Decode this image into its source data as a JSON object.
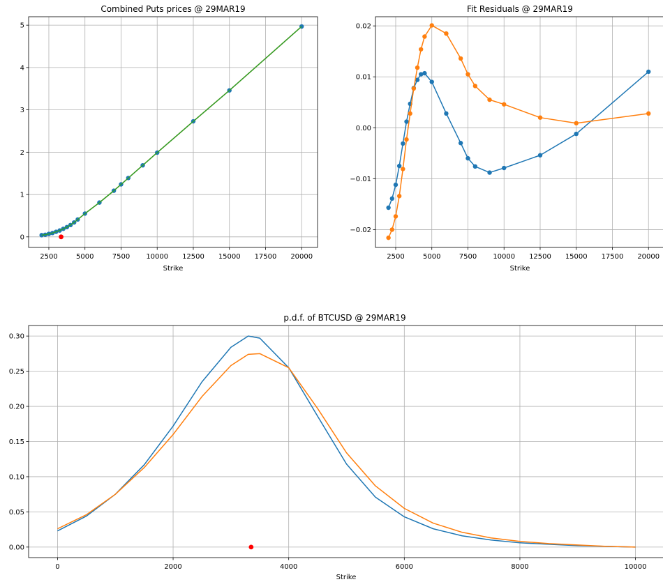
{
  "colors": {
    "blue": "#1f77b4",
    "orange": "#ff7f0e",
    "green": "#2ca02c",
    "red": "#ff0000"
  },
  "chart_data": [
    {
      "id": "puts",
      "type": "line",
      "title": "Combined Puts prices @ 29MAR19",
      "xlabel": "Strike",
      "ylabel": "",
      "xlim": [
        1100,
        21100
      ],
      "ylim": [
        -0.25,
        5.2
      ],
      "xticks": [
        2500,
        5000,
        7500,
        10000,
        12500,
        15000,
        17500,
        20000
      ],
      "yticks": [
        0,
        1,
        2,
        3,
        4,
        5
      ],
      "grid": true,
      "x": [
        2000,
        2250,
        2500,
        2750,
        3000,
        3250,
        3500,
        3750,
        4000,
        4250,
        4500,
        5000,
        6000,
        7000,
        7500,
        8000,
        9000,
        10000,
        12500,
        15000,
        20000
      ],
      "series": [
        {
          "color": "orange",
          "style": "line",
          "values": [
            0.04,
            0.05,
            0.07,
            0.09,
            0.12,
            0.15,
            0.19,
            0.23,
            0.28,
            0.34,
            0.41,
            0.55,
            0.81,
            1.09,
            1.24,
            1.39,
            1.69,
            1.99,
            2.73,
            3.46,
            4.97
          ]
        },
        {
          "color": "blue",
          "style": "markers",
          "values": [
            0.04,
            0.05,
            0.07,
            0.09,
            0.12,
            0.15,
            0.19,
            0.23,
            0.28,
            0.34,
            0.41,
            0.55,
            0.81,
            1.09,
            1.24,
            1.39,
            1.69,
            1.99,
            2.73,
            3.46,
            4.97
          ]
        },
        {
          "color": "green",
          "style": "line",
          "values": [
            0.04,
            0.05,
            0.07,
            0.09,
            0.12,
            0.15,
            0.19,
            0.23,
            0.28,
            0.34,
            0.41,
            0.55,
            0.81,
            1.09,
            1.24,
            1.39,
            1.69,
            1.99,
            2.73,
            3.46,
            4.97
          ]
        }
      ],
      "marker": {
        "x": 3350,
        "y": 0.0,
        "color": "red"
      }
    },
    {
      "id": "residuals",
      "type": "line",
      "title": "Fit Residuals @ 29MAR19",
      "xlabel": "Strike",
      "ylabel": "",
      "xlim": [
        1100,
        21100
      ],
      "ylim": [
        -0.0235,
        0.0218
      ],
      "xticks": [
        2500,
        5000,
        7500,
        10000,
        12500,
        15000,
        17500,
        20000
      ],
      "yticks": [
        -0.02,
        -0.01,
        0.0,
        0.01,
        0.02
      ],
      "ytick_labels": [
        "−0.02",
        "−0.01",
        "0.00",
        "0.01",
        "0.02"
      ],
      "grid": true,
      "x": [
        2000,
        2250,
        2500,
        2750,
        3000,
        3250,
        3500,
        3750,
        4000,
        4250,
        4500,
        5000,
        6000,
        7000,
        7500,
        8000,
        9000,
        10000,
        12500,
        15000,
        20000
      ],
      "series": [
        {
          "color": "blue",
          "style": "line+markers",
          "values": [
            -0.0157,
            -0.0139,
            -0.0112,
            -0.0075,
            -0.0031,
            0.0012,
            0.0047,
            0.0078,
            0.0094,
            0.0105,
            0.0107,
            0.009,
            0.0028,
            -0.003,
            -0.006,
            -0.0076,
            -0.0088,
            -0.0079,
            -0.0054,
            -0.0012,
            0.011
          ]
        },
        {
          "color": "orange",
          "style": "line+markers",
          "values": [
            -0.0216,
            -0.02,
            -0.0174,
            -0.0134,
            -0.0081,
            -0.0023,
            0.0028,
            0.0077,
            0.0118,
            0.0154,
            0.0179,
            0.0201,
            0.0185,
            0.0136,
            0.0105,
            0.0082,
            0.0055,
            0.0046,
            0.002,
            0.0009,
            0.0028
          ]
        }
      ]
    },
    {
      "id": "pdf",
      "type": "line",
      "title": "p.d.f. of BTCUSD @ 29MAR19",
      "xlabel": "Strike",
      "ylabel": "",
      "xlim": [
        -500,
        10500
      ],
      "ylim": [
        -0.015,
        0.315
      ],
      "xticks": [
        0,
        2000,
        4000,
        6000,
        8000,
        10000
      ],
      "yticks": [
        0.0,
        0.05,
        0.1,
        0.15,
        0.2,
        0.25,
        0.3
      ],
      "ytick_labels": [
        "0.00",
        "0.05",
        "0.10",
        "0.15",
        "0.20",
        "0.25",
        "0.30"
      ],
      "grid": true,
      "x": [
        0,
        500,
        1000,
        1500,
        2000,
        2500,
        3000,
        3300,
        3500,
        4000,
        4500,
        5000,
        5500,
        6000,
        6500,
        7000,
        7500,
        8000,
        8500,
        9000,
        9500,
        10000
      ],
      "series": [
        {
          "color": "blue",
          "values": [
            0.023,
            0.044,
            0.075,
            0.117,
            0.172,
            0.235,
            0.284,
            0.3,
            0.297,
            0.255,
            0.186,
            0.118,
            0.071,
            0.043,
            0.026,
            0.016,
            0.01,
            0.006,
            0.004,
            0.002,
            0.001,
            0.0
          ]
        },
        {
          "color": "orange",
          "values": [
            0.026,
            0.046,
            0.075,
            0.113,
            0.16,
            0.214,
            0.258,
            0.274,
            0.275,
            0.255,
            0.197,
            0.134,
            0.087,
            0.055,
            0.034,
            0.021,
            0.013,
            0.008,
            0.005,
            0.003,
            0.001,
            0.0
          ]
        }
      ],
      "marker": {
        "x": 3350,
        "y": 0.0,
        "color": "red"
      }
    }
  ]
}
